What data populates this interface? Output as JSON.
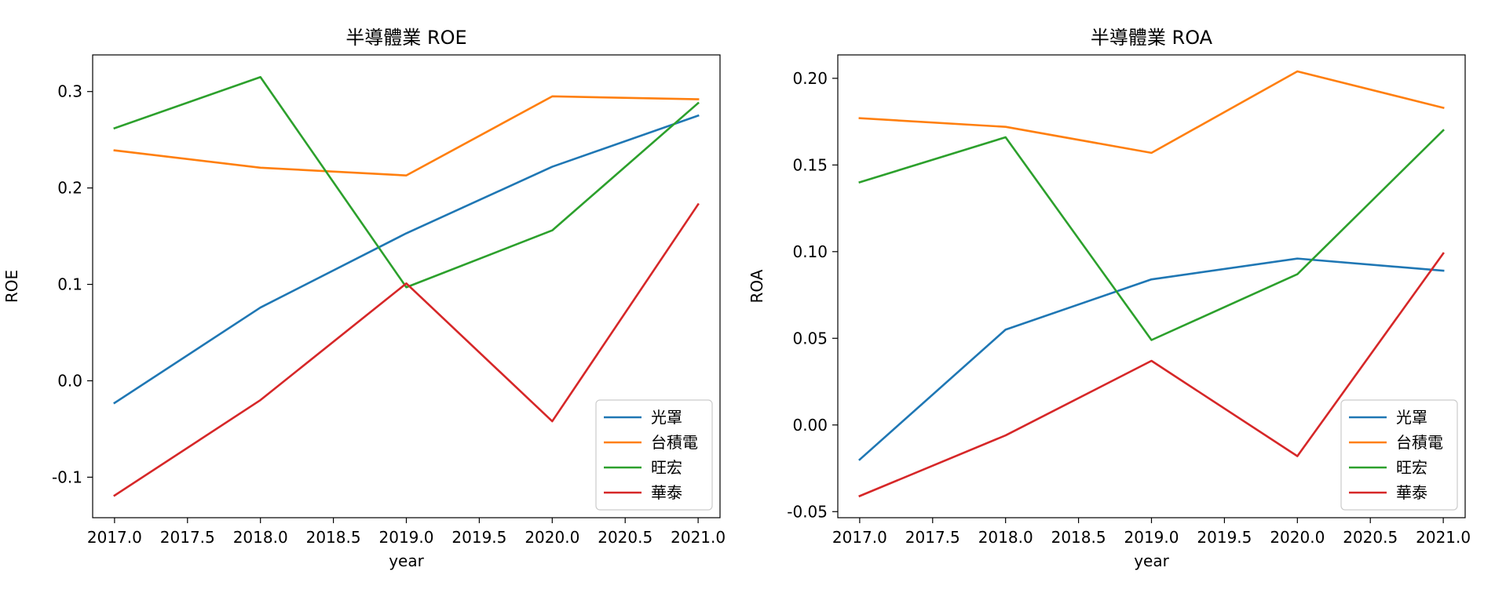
{
  "chart_data": [
    {
      "type": "line",
      "title": "半導體業 ROE",
      "xlabel": "year",
      "ylabel": "ROE",
      "x": [
        2017,
        2018,
        2019,
        2020,
        2021
      ],
      "xlim": [
        2016.85,
        2021.15
      ],
      "ylim": [
        -0.142,
        0.338
      ],
      "xticks": [
        2017.0,
        2017.5,
        2018.0,
        2018.5,
        2019.0,
        2019.5,
        2020.0,
        2020.5,
        2021.0
      ],
      "xtick_labels": [
        "2017.0",
        "2017.5",
        "2018.0",
        "2018.5",
        "2019.0",
        "2019.5",
        "2020.0",
        "2020.5",
        "2021.0"
      ],
      "yticks": [
        -0.1,
        0.0,
        0.1,
        0.2,
        0.3
      ],
      "ytick_labels": [
        "-0.1",
        "0.0",
        "0.1",
        "0.2",
        "0.3"
      ],
      "grid": false,
      "legend": "lower-right",
      "series": [
        {
          "name": "光罩",
          "color": "#1f77b4",
          "values": [
            -0.023,
            0.076,
            0.153,
            0.222,
            0.275
          ]
        },
        {
          "name": "台積電",
          "color": "#ff7f0e",
          "values": [
            0.239,
            0.221,
            0.213,
            0.295,
            0.292
          ]
        },
        {
          "name": "旺宏",
          "color": "#2ca02c",
          "values": [
            0.262,
            0.315,
            0.097,
            0.156,
            0.288
          ]
        },
        {
          "name": "華泰",
          "color": "#d62728",
          "values": [
            -0.119,
            -0.02,
            0.101,
            -0.042,
            0.183
          ]
        }
      ]
    },
    {
      "type": "line",
      "title": "半導體業 ROA",
      "xlabel": "year",
      "ylabel": "ROA",
      "x": [
        2017,
        2018,
        2019,
        2020,
        2021
      ],
      "xlim": [
        2016.85,
        2021.15
      ],
      "ylim": [
        -0.0535,
        0.2135
      ],
      "xticks": [
        2017.0,
        2017.5,
        2018.0,
        2018.5,
        2019.0,
        2019.5,
        2020.0,
        2020.5,
        2021.0
      ],
      "xtick_labels": [
        "2017.0",
        "2017.5",
        "2018.0",
        "2018.5",
        "2019.0",
        "2019.5",
        "2020.0",
        "2020.5",
        "2021.0"
      ],
      "yticks": [
        -0.05,
        0.0,
        0.05,
        0.1,
        0.15,
        0.2
      ],
      "ytick_labels": [
        "-0.05",
        "0.00",
        "0.05",
        "0.10",
        "0.15",
        "0.20"
      ],
      "grid": false,
      "legend": "lower-right",
      "series": [
        {
          "name": "光罩",
          "color": "#1f77b4",
          "values": [
            -0.02,
            0.055,
            0.084,
            0.096,
            0.089
          ]
        },
        {
          "name": "台積電",
          "color": "#ff7f0e",
          "values": [
            0.177,
            0.172,
            0.157,
            0.204,
            0.183
          ]
        },
        {
          "name": "旺宏",
          "color": "#2ca02c",
          "values": [
            0.14,
            0.166,
            0.049,
            0.087,
            0.17
          ]
        },
        {
          "name": "華泰",
          "color": "#d62728",
          "values": [
            -0.041,
            -0.006,
            0.037,
            -0.018,
            0.099
          ]
        }
      ]
    }
  ]
}
